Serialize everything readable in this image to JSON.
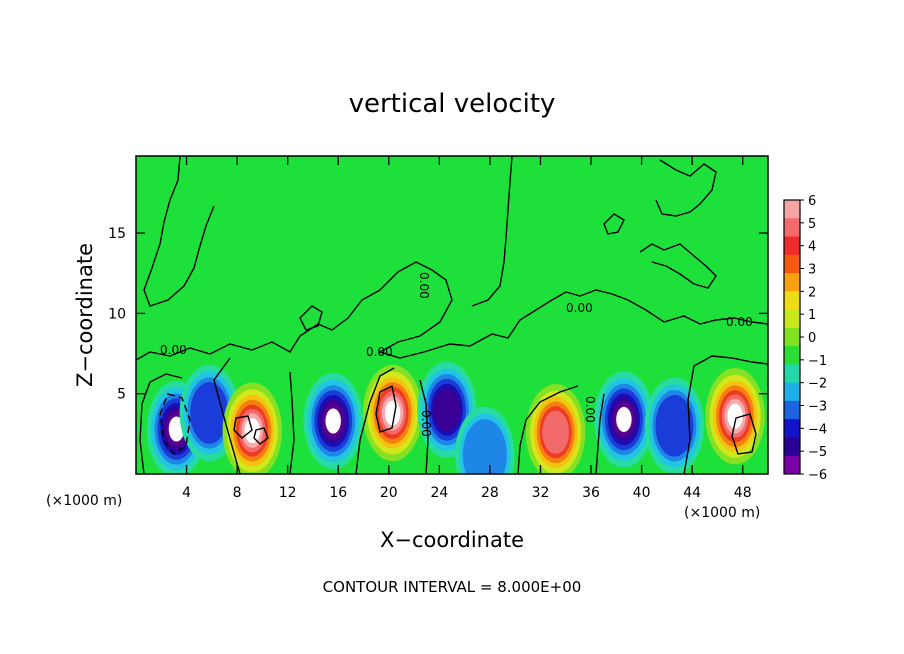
{
  "chart_data": {
    "type": "heatmap",
    "title": "vertical velocity",
    "xlabel": "X−coordinate",
    "ylabel": "Z−coordinate",
    "x_unit": "(×1000 m)",
    "y_unit": "(×1000 m)",
    "xlim": [
      0,
      50
    ],
    "ylim": [
      0,
      19.8
    ],
    "x_ticks": [
      4,
      8,
      12,
      16,
      20,
      24,
      28,
      32,
      36,
      40,
      44,
      48
    ],
    "y_ticks": [
      5,
      10,
      15
    ],
    "x_tick_labels": [
      "4",
      "8",
      "12",
      "16",
      "20",
      "24",
      "28",
      "32",
      "36",
      "40",
      "44",
      "48"
    ],
    "y_tick_labels": [
      "5",
      "10",
      "15"
    ],
    "colorbar": {
      "range": [
        -6,
        6
      ],
      "labels": [
        "6",
        "5",
        "4",
        "3",
        "2",
        "1",
        "0",
        "−1",
        "−2",
        "−3",
        "−4",
        "−5",
        "−6"
      ],
      "colors": [
        "#f7a4a4",
        "#f36a6a",
        "#ee2a2a",
        "#f45a12",
        "#f8a010",
        "#f0dc14",
        "#c8e81c",
        "#7ee21e",
        "#2ade34",
        "#22d8a8",
        "#1eaee8",
        "#1c64e0",
        "#1212c8",
        "#2b0096",
        "#7a00a8"
      ]
    },
    "contour_label": "0.00",
    "cells": [
      {
        "x": 3.2,
        "z": 2.8,
        "w": -9
      },
      {
        "x": 5.8,
        "z": 3.8,
        "w": -4
      },
      {
        "x": 9.2,
        "z": 2.7,
        "w": 9
      },
      {
        "x": 15.6,
        "z": 3.3,
        "w": -9
      },
      {
        "x": 20.3,
        "z": 3.8,
        "w": 9
      },
      {
        "x": 24.6,
        "z": 4.0,
        "w": -6
      },
      {
        "x": 27.6,
        "z": 1.2,
        "w": -3
      },
      {
        "x": 33.2,
        "z": 2.6,
        "w": 6
      },
      {
        "x": 38.6,
        "z": 3.4,
        "w": -9
      },
      {
        "x": 42.6,
        "z": 3.0,
        "w": -4
      },
      {
        "x": 47.4,
        "z": 3.6,
        "w": 9
      }
    ],
    "contour_interval_text": "CONTOUR INTERVAL = 8.000E+00"
  }
}
